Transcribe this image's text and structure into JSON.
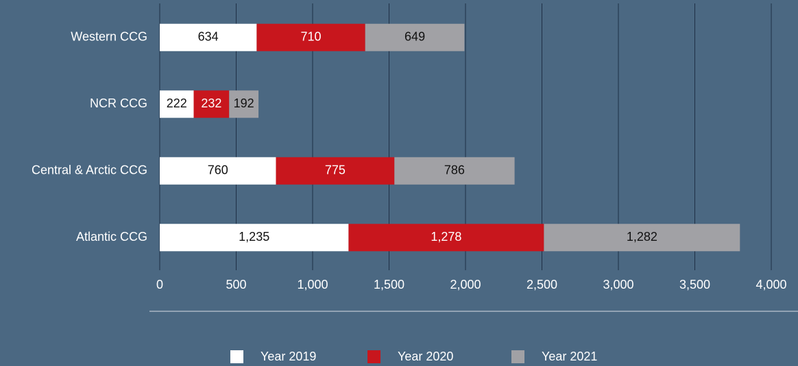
{
  "chart_data": {
    "type": "stacked_barh",
    "categories": [
      "Western CCG",
      "NCR CCG",
      "Central & Arctic CCG",
      "Atlantic CCG"
    ],
    "series": [
      {
        "name": "Year 2019",
        "color": "#ffffff",
        "values": [
          634,
          222,
          760,
          1235
        ],
        "value_labels": [
          "634",
          "222",
          "760",
          "1,235"
        ]
      },
      {
        "name": "Year 2020",
        "color": "#c8161d",
        "values": [
          710,
          232,
          775,
          1278
        ],
        "value_labels": [
          "710",
          "232",
          "775",
          "1,278"
        ]
      },
      {
        "name": "Year 2021",
        "color": "#a1a1a5",
        "values": [
          649,
          192,
          786,
          1282
        ],
        "value_labels": [
          "649",
          "192",
          "786",
          "1,282"
        ]
      }
    ],
    "xlim": [
      0,
      4000
    ],
    "xticks": [
      0,
      500,
      {
        "value": 1000,
        "label": "1,000"
      },
      {
        "value": 1500,
        "label": "1,500"
      },
      {
        "value": 2000,
        "label": "2,000"
      },
      {
        "value": 2500,
        "label": "2,500"
      },
      {
        "value": 3000,
        "label": "3,000"
      },
      {
        "value": 3500,
        "label": "3,500"
      },
      {
        "value": 4000,
        "label": "4,000"
      }
    ],
    "grid": true,
    "legend": "bottom"
  }
}
